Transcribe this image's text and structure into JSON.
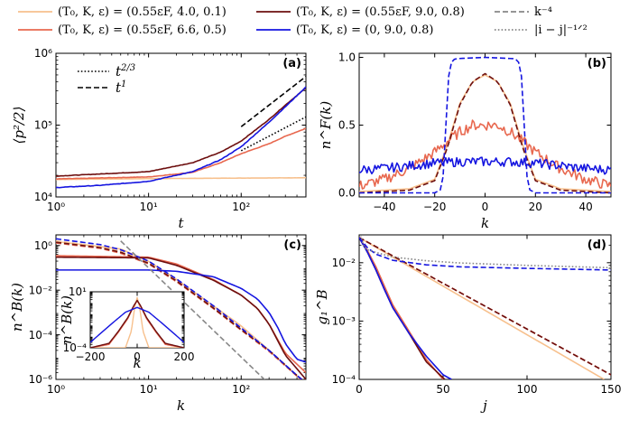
{
  "colors": {
    "light": "#f7c08d",
    "orange": "#e8684f",
    "dark": "#6d0f0f",
    "blue": "#1515e0",
    "gray": "#888888"
  },
  "legend": {
    "entries": [
      {
        "label": "(T₀, K, ε) = (0.55εF, 4.0, 0.1)",
        "color_key": "light",
        "dash": "solid"
      },
      {
        "label": "(T₀, K, ε) = (0.55εF, 6.6, 0.5)",
        "color_key": "orange",
        "dash": "solid"
      },
      {
        "label": "(T₀, K, ε) = (0.55εF, 9.0, 0.8)",
        "color_key": "dark",
        "dash": "solid"
      },
      {
        "label": "(T₀, K, ε) = (0, 9.0, 0.8)",
        "color_key": "blue",
        "dash": "solid"
      },
      {
        "label": "k⁻⁴",
        "color_key": "gray",
        "dash": "dashed"
      },
      {
        "label": "|i − j|⁻¹ᐟ²",
        "color_key": "gray",
        "dash": "dotted"
      }
    ]
  },
  "chart_data": [
    {
      "panel": "(a)",
      "type": "line",
      "xlabel": "t",
      "ylabel": "⟨p²/2⟩",
      "xscale": "log",
      "yscale": "log",
      "xlim": [
        1,
        500
      ],
      "ylim": [
        10000,
        1000000
      ],
      "xticks": [
        {
          "v": 1,
          "label": "10⁰"
        },
        {
          "v": 10,
          "label": "10¹"
        },
        {
          "v": 100,
          "label": "10²"
        }
      ],
      "yticks": [
        {
          "v": 10000,
          "label": "10⁴"
        },
        {
          "v": 100000,
          "label": "10⁵"
        },
        {
          "v": 1000000,
          "label": "10⁶"
        }
      ],
      "inner_legend": [
        "t^{2/3}",
        "t^{1}"
      ],
      "series": [
        {
          "name": "light",
          "color_key": "light",
          "noise": 0.002,
          "x": [
            1,
            10,
            100,
            500
          ],
          "y": [
            17500,
            18000,
            18300,
            18500
          ]
        },
        {
          "name": "orange",
          "color_key": "orange",
          "noise": 0.006,
          "x": [
            1,
            10,
            30,
            60,
            100,
            200,
            300,
            500
          ],
          "y": [
            17800,
            19000,
            22000,
            30000,
            40000,
            55000,
            70000,
            90000
          ]
        },
        {
          "name": "dark",
          "color_key": "dark",
          "noise": 0.006,
          "x": [
            1,
            10,
            30,
            60,
            100,
            200,
            300,
            500
          ],
          "y": [
            19500,
            22500,
            30000,
            42000,
            60000,
            120000,
            190000,
            330000
          ]
        },
        {
          "name": "blue",
          "color_key": "blue",
          "noise": 0.008,
          "x": [
            1,
            3,
            10,
            30,
            60,
            100,
            200,
            300,
            500
          ],
          "y": [
            13500,
            14500,
            16500,
            22500,
            33000,
            50000,
            110000,
            180000,
            340000
          ]
        },
        {
          "name": "t^(2/3) guide",
          "color_key": "black",
          "dash": "dotted",
          "x": [
            100,
            500
          ],
          "y": [
            44000,
            130000
          ]
        },
        {
          "name": "t^1 guide",
          "color_key": "black",
          "dash": "dashed",
          "x": [
            100,
            500
          ],
          "y": [
            95000,
            475000
          ]
        }
      ]
    },
    {
      "panel": "(b)",
      "type": "line",
      "xlabel": "k",
      "ylabel": "n^F(k)",
      "xscale": "linear",
      "yscale": "linear",
      "xlim": [
        -50,
        50
      ],
      "ylim": [
        -0.03,
        1.03
      ],
      "xticks": [
        {
          "v": -40,
          "label": "−40"
        },
        {
          "v": -20,
          "label": "−20"
        },
        {
          "v": 0,
          "label": "0"
        },
        {
          "v": 20,
          "label": "20"
        },
        {
          "v": 40,
          "label": "40"
        }
      ],
      "yticks": [
        {
          "v": 0,
          "label": "0.0"
        },
        {
          "v": 0.5,
          "label": "0.5"
        },
        {
          "v": 1,
          "label": "1.0"
        }
      ],
      "series": [
        {
          "name": "light",
          "color_key": "light",
          "noise": 0,
          "x": [
            -50,
            -30,
            -20,
            -15,
            -10,
            -5,
            0,
            5,
            10,
            15,
            20,
            30,
            50
          ],
          "y": [
            0.01,
            0.03,
            0.1,
            0.35,
            0.66,
            0.82,
            0.87,
            0.82,
            0.66,
            0.35,
            0.1,
            0.03,
            0.01
          ]
        },
        {
          "name": "orange",
          "color_key": "orange",
          "noise": 0.04,
          "x": [
            -50,
            -40,
            -30,
            -25,
            -20,
            -15,
            -10,
            -5,
            0,
            5,
            10,
            15,
            20,
            25,
            30,
            40,
            50
          ],
          "y": [
            0.05,
            0.1,
            0.18,
            0.24,
            0.3,
            0.38,
            0.45,
            0.5,
            0.5,
            0.5,
            0.45,
            0.38,
            0.3,
            0.24,
            0.18,
            0.1,
            0.05
          ]
        },
        {
          "name": "dark",
          "color_key": "dark",
          "dash": "dashed",
          "noise": 0,
          "x": [
            -50,
            -30,
            -20,
            -15,
            -10,
            -5,
            0,
            5,
            10,
            15,
            20,
            30,
            50
          ],
          "y": [
            0.0,
            0.02,
            0.09,
            0.33,
            0.65,
            0.82,
            0.88,
            0.82,
            0.65,
            0.33,
            0.09,
            0.02,
            0.0
          ]
        },
        {
          "name": "blue solid",
          "color_key": "blue",
          "noise": 0.035,
          "x": [
            -50,
            -40,
            -30,
            -20,
            -10,
            0,
            10,
            20,
            30,
            40,
            50
          ],
          "y": [
            0.17,
            0.18,
            0.2,
            0.22,
            0.23,
            0.23,
            0.23,
            0.22,
            0.2,
            0.18,
            0.17
          ]
        },
        {
          "name": "blue dashed",
          "color_key": "blue",
          "dash": "dashed",
          "noise": 0,
          "x": [
            -50,
            -20,
            -17,
            -16,
            -15,
            -14,
            -12,
            0,
            12,
            14,
            15,
            16,
            17,
            20,
            50
          ],
          "y": [
            0.0,
            0.0,
            0.03,
            0.3,
            0.75,
            0.95,
            0.99,
            1.0,
            0.99,
            0.95,
            0.75,
            0.3,
            0.03,
            0.0,
            0.0
          ]
        }
      ]
    },
    {
      "panel": "(c)",
      "type": "line",
      "xlabel": "k",
      "ylabel": "n^B(k)",
      "xscale": "log",
      "yscale": "log",
      "xlim": [
        1,
        500
      ],
      "ylim": [
        1e-06,
        3
      ],
      "xticks": [
        {
          "v": 1,
          "label": "10⁰"
        },
        {
          "v": 10,
          "label": "10¹"
        },
        {
          "v": 100,
          "label": "10²"
        }
      ],
      "yticks": [
        {
          "v": 1,
          "label": "10⁰"
        },
        {
          "v": 0.01,
          "label": "10⁻²"
        },
        {
          "v": 0.0001,
          "label": "10⁻⁴"
        },
        {
          "v": 1e-06,
          "label": "10⁻⁶"
        }
      ],
      "series": [
        {
          "name": "light",
          "color_key": "light",
          "noise": 0,
          "x": [
            1,
            5,
            10,
            20,
            50,
            100,
            200,
            500
          ],
          "y": [
            1.5,
            0.7,
            0.2,
            0.03,
            0.002,
            0.00025,
            2e-05,
            6e-07
          ]
        },
        {
          "name": "light dashed",
          "color_key": "light",
          "dash": "dashed",
          "noise": 0,
          "x": [
            1,
            3,
            5,
            10,
            20,
            50,
            100,
            200,
            400,
            500
          ],
          "y": [
            1.6,
            0.9,
            0.55,
            0.17,
            0.028,
            0.0017,
            0.00018,
            2e-05,
            1.5e-06,
            7e-07
          ]
        },
        {
          "name": "orange",
          "color_key": "orange",
          "noise": 0,
          "x": [
            1,
            10,
            20,
            50,
            100,
            150,
            200,
            300,
            500
          ],
          "y": [
            0.35,
            0.3,
            0.15,
            0.03,
            0.006,
            0.0015,
            0.0003,
            1.5e-05,
            2e-06
          ]
        },
        {
          "name": "orange dashed",
          "color_key": "orange",
          "dash": "dashed",
          "noise": 0,
          "x": [
            1,
            3,
            5,
            10,
            20,
            50,
            100,
            200,
            400,
            500
          ],
          "y": [
            1.3,
            0.75,
            0.45,
            0.15,
            0.024,
            0.0015,
            0.00016,
            1.8e-05,
            1.4e-06,
            7e-07
          ]
        },
        {
          "name": "dark",
          "color_key": "dark",
          "noise": 0,
          "x": [
            1,
            10,
            20,
            50,
            100,
            150,
            200,
            300,
            400,
            500
          ],
          "y": [
            0.3,
            0.28,
            0.13,
            0.028,
            0.006,
            0.0015,
            0.0003,
            1.2e-05,
            3e-06,
            1e-06
          ]
        },
        {
          "name": "dark dashed",
          "color_key": "dark",
          "dash": "dashed",
          "noise": 0,
          "x": [
            1,
            3,
            5,
            10,
            20,
            50,
            100,
            200,
            400,
            500
          ],
          "y": [
            1.4,
            0.8,
            0.5,
            0.16,
            0.026,
            0.0016,
            0.00017,
            2e-05,
            1.5e-06,
            7e-07
          ]
        },
        {
          "name": "blue",
          "color_key": "blue",
          "noise": 0,
          "x": [
            1,
            10,
            20,
            50,
            100,
            150,
            200,
            250,
            300,
            400,
            500
          ],
          "y": [
            0.08,
            0.08,
            0.07,
            0.04,
            0.012,
            0.004,
            0.001,
            0.0002,
            4e-05,
            8e-06,
            6e-06
          ]
        },
        {
          "name": "blue dashed",
          "color_key": "blue",
          "dash": "dashed",
          "noise": 0,
          "x": [
            1,
            3,
            5,
            10,
            20,
            50,
            100,
            200,
            400,
            500
          ],
          "y": [
            2.0,
            1.1,
            0.65,
            0.2,
            0.032,
            0.002,
            0.0002,
            2e-05,
            1.5e-06,
            7e-07
          ]
        },
        {
          "name": "k^-4 guide",
          "color_key": "gray",
          "dash": "dashed",
          "noise": 0,
          "x": [
            5,
            400
          ],
          "y": [
            1.6,
            3.91e-08
          ]
        }
      ],
      "inset": {
        "type": "line",
        "xlabel": "k",
        "ylabel": "n^B(k)",
        "xscale": "linear",
        "yscale": "log",
        "xlim": [
          -200,
          200
        ],
        "ylim": [
          0.0001,
          10
        ],
        "xticks": [
          {
            "v": -200,
            "label": "−200"
          },
          {
            "v": 0,
            "label": "0"
          },
          {
            "v": 200,
            "label": "200"
          }
        ],
        "yticks": [
          {
            "v": 0.0001,
            "label": "10⁻⁴"
          },
          {
            "v": 10,
            "label": "10¹"
          }
        ],
        "series": [
          {
            "name": "light",
            "color_key": "light",
            "x": [
              -200,
              -50,
              -25,
              -10,
              0,
              10,
              25,
              50,
              200
            ],
            "y": [
              0.0001,
              0.0001,
              0.003,
              0.5,
              3,
              0.5,
              0.003,
              0.0001,
              0.0001
            ]
          },
          {
            "name": "orange",
            "color_key": "orange",
            "x": [
              -200,
              -120,
              -80,
              -40,
              -15,
              0,
              15,
              40,
              80,
              120,
              200
            ],
            "y": [
              0.0001,
              0.0002,
              0.0025,
              0.04,
              0.5,
              1.6,
              0.5,
              0.04,
              0.0025,
              0.0002,
              0.0001
            ]
          },
          {
            "name": "dark",
            "color_key": "dark",
            "x": [
              -200,
              -120,
              -80,
              -40,
              -15,
              0,
              15,
              40,
              80,
              120,
              200
            ],
            "y": [
              0.0001,
              0.00025,
              0.003,
              0.05,
              0.55,
              1.7,
              0.55,
              0.05,
              0.003,
              0.00025,
              0.0001
            ]
          },
          {
            "name": "blue",
            "color_key": "blue",
            "x": [
              -200,
              -150,
              -100,
              -50,
              0,
              50,
              100,
              150,
              200
            ],
            "y": [
              0.0003,
              0.0025,
              0.02,
              0.15,
              0.4,
              0.15,
              0.02,
              0.0025,
              0.0003
            ]
          }
        ]
      }
    },
    {
      "panel": "(d)",
      "type": "line",
      "xlabel": "j",
      "ylabel": "g₁^B",
      "xscale": "linear",
      "yscale": "log",
      "xlim": [
        0,
        150
      ],
      "ylim": [
        0.0001,
        0.03
      ],
      "xticks": [
        {
          "v": 0,
          "label": "0"
        },
        {
          "v": 50,
          "label": "50"
        },
        {
          "v": 100,
          "label": "100"
        },
        {
          "v": 150,
          "label": "150"
        }
      ],
      "yticks": [
        {
          "v": 0.01,
          "label": "10⁻²"
        },
        {
          "v": 0.001,
          "label": "10⁻³"
        },
        {
          "v": 0.0001,
          "label": "10⁻⁴"
        }
      ],
      "series": [
        {
          "name": "light",
          "color_key": "light",
          "x": [
            0,
            146
          ],
          "y": [
            0.027,
            0.0001
          ]
        },
        {
          "name": "light dashed",
          "color_key": "light",
          "dash": "dashed",
          "x": [
            0,
            150
          ],
          "y": [
            0.027,
            0.00012
          ]
        },
        {
          "name": "orange",
          "color_key": "orange",
          "x": [
            0,
            5,
            10,
            15,
            20,
            30,
            40,
            50
          ],
          "y": [
            0.027,
            0.016,
            0.0085,
            0.004,
            0.0019,
            0.00065,
            0.00022,
            0.0001
          ]
        },
        {
          "name": "orange dashed",
          "color_key": "orange",
          "dash": "dashed",
          "x": [
            0,
            150
          ],
          "y": [
            0.027,
            0.00012
          ]
        },
        {
          "name": "dark",
          "color_key": "dark",
          "x": [
            0,
            5,
            10,
            15,
            20,
            30,
            40,
            51
          ],
          "y": [
            0.027,
            0.015,
            0.0075,
            0.0035,
            0.0017,
            0.0006,
            0.0002,
            0.0001
          ]
        },
        {
          "name": "dark dashed",
          "color_key": "dark",
          "dash": "dashed",
          "x": [
            0,
            150
          ],
          "y": [
            0.027,
            0.00012
          ]
        },
        {
          "name": "blue",
          "color_key": "blue",
          "x": [
            0,
            5,
            10,
            15,
            20,
            30,
            40,
            50,
            55
          ],
          "y": [
            0.027,
            0.015,
            0.0075,
            0.0035,
            0.0017,
            0.0006,
            0.00025,
            0.00012,
            0.0001
          ]
        },
        {
          "name": "blue dashed",
          "color_key": "blue",
          "dash": "dashed",
          "x": [
            0,
            5,
            10,
            20,
            40,
            60,
            100,
            150
          ],
          "y": [
            0.027,
            0.018,
            0.014,
            0.011,
            0.0092,
            0.0085,
            0.008,
            0.0075
          ]
        },
        {
          "name": "|i-j|^-1/2 guide",
          "color_key": "gray",
          "dash": "dotted",
          "x": [
            1,
            3,
            10,
            20,
            40,
            60,
            100,
            150
          ],
          "y": [
            0.03,
            0.0173,
            0.015,
            0.0125,
            0.0108,
            0.0099,
            0.009,
            0.0082
          ]
        }
      ]
    }
  ]
}
